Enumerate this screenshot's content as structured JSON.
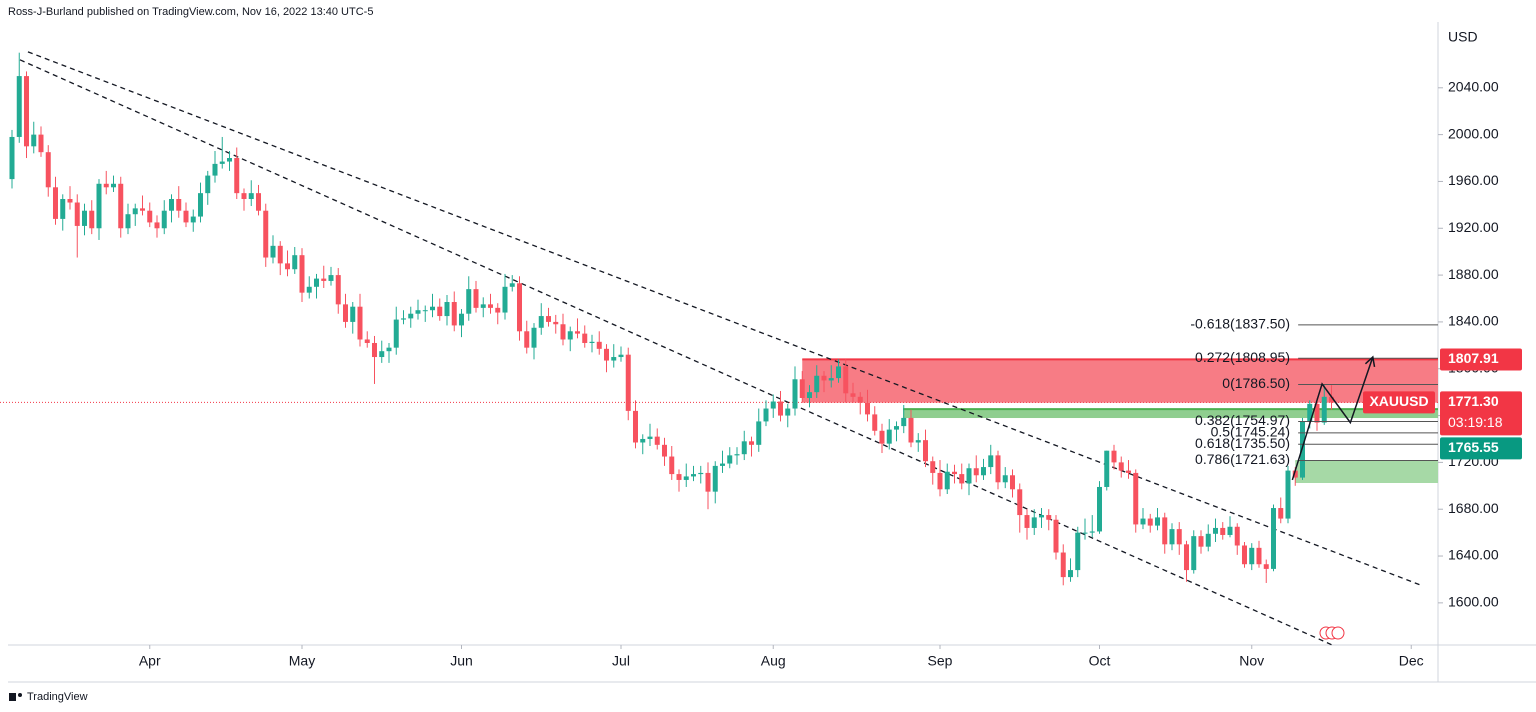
{
  "chart_data": {
    "type": "candlestick",
    "header": "Ross-J-Burland published on TradingView.com, Nov 16, 2022 13:40 UTC-5",
    "footer": "TradingView",
    "currency": "USD",
    "symbol": "XAUUSD",
    "up_color": "#22ab94",
    "down_color": "#f7525f",
    "xlim": [
      -1.655,
      196.69
    ],
    "xticks": [
      {
        "value": 19,
        "label": "Apr"
      },
      {
        "value": 40,
        "label": "May"
      },
      {
        "value": 62,
        "label": "Jun"
      },
      {
        "value": 84,
        "label": "Jul"
      },
      {
        "value": 105,
        "label": "Aug"
      },
      {
        "value": 128,
        "label": "Sep"
      },
      {
        "value": 150,
        "label": "Oct"
      },
      {
        "value": 171,
        "label": "Nov"
      },
      {
        "value": 193,
        "label": "Dec"
      }
    ],
    "ylim": [
      1564,
      2115
    ],
    "yticks": [
      {
        "value": 1600,
        "label": "1600.00"
      },
      {
        "value": 1640,
        "label": "1640.00"
      },
      {
        "value": 1680,
        "label": "1680.00"
      },
      {
        "value": 1720,
        "label": "1720.00"
      },
      {
        "value": 1760,
        "label": "1760.00"
      },
      {
        "value": 1800,
        "label": "1800.00"
      },
      {
        "value": 1840,
        "label": "1840.00"
      },
      {
        "value": 1880,
        "label": "1880.00"
      },
      {
        "value": 1920,
        "label": "1920.00"
      },
      {
        "value": 1960,
        "label": "1960.00"
      },
      {
        "value": 2000,
        "label": "2000.00"
      },
      {
        "value": 2040,
        "label": "2040.00"
      }
    ],
    "ohlc": [
      [
        1962,
        2004,
        1954,
        1998
      ],
      [
        1998,
        2070,
        1993,
        2050
      ],
      [
        2050,
        2054,
        1980,
        1990
      ],
      [
        1990,
        2011,
        1984,
        2000
      ],
      [
        2000,
        2007,
        1981,
        1985
      ],
      [
        1985,
        1991,
        1947,
        1955
      ],
      [
        1955,
        1964,
        1923,
        1928
      ],
      [
        1928,
        1949,
        1918,
        1945
      ],
      [
        1945,
        1956,
        1936,
        1942
      ],
      [
        1942,
        1949,
        1895,
        1922
      ],
      [
        1922,
        1941,
        1914,
        1935
      ],
      [
        1935,
        1944,
        1915,
        1920
      ],
      [
        1920,
        1962,
        1910,
        1958
      ],
      [
        1958,
        1969,
        1949,
        1955
      ],
      [
        1955,
        1965,
        1951,
        1958
      ],
      [
        1958,
        1964,
        1912,
        1920
      ],
      [
        1920,
        1941,
        1915,
        1932
      ],
      [
        1932,
        1941,
        1922,
        1937
      ],
      [
        1937,
        1948,
        1931,
        1935
      ],
      [
        1935,
        1942,
        1921,
        1925
      ],
      [
        1925,
        1931,
        1912,
        1920
      ],
      [
        1920,
        1944,
        1915,
        1935
      ],
      [
        1935,
        1949,
        1925,
        1945
      ],
      [
        1945,
        1956,
        1929,
        1935
      ],
      [
        1935,
        1942,
        1921,
        1925
      ],
      [
        1925,
        1936,
        1917,
        1930
      ],
      [
        1930,
        1959,
        1925,
        1950
      ],
      [
        1950,
        1969,
        1940,
        1965
      ],
      [
        1965,
        1986,
        1959,
        1975
      ],
      [
        1975,
        1998,
        1971,
        1977
      ],
      [
        1977,
        1986,
        1969,
        1980
      ],
      [
        1980,
        1989,
        1945,
        1950
      ],
      [
        1950,
        1954,
        1935,
        1945
      ],
      [
        1945,
        1961,
        1939,
        1950
      ],
      [
        1950,
        1957,
        1931,
        1935
      ],
      [
        1935,
        1941,
        1887,
        1895
      ],
      [
        1895,
        1914,
        1890,
        1905
      ],
      [
        1905,
        1909,
        1880,
        1890
      ],
      [
        1890,
        1901,
        1879,
        1885
      ],
      [
        1885,
        1904,
        1881,
        1897
      ],
      [
        1897,
        1903,
        1857,
        1865
      ],
      [
        1865,
        1879,
        1860,
        1870
      ],
      [
        1870,
        1881,
        1860,
        1877
      ],
      [
        1877,
        1888,
        1869,
        1875
      ],
      [
        1875,
        1887,
        1871,
        1880
      ],
      [
        1880,
        1886,
        1847,
        1855
      ],
      [
        1855,
        1864,
        1835,
        1840
      ],
      [
        1840,
        1857,
        1830,
        1853
      ],
      [
        1853,
        1864,
        1819,
        1825
      ],
      [
        1825,
        1832,
        1818,
        1822
      ],
      [
        1822,
        1828,
        1787,
        1810
      ],
      [
        1810,
        1824,
        1805,
        1815
      ],
      [
        1815,
        1822,
        1805,
        1818
      ],
      [
        1818,
        1853,
        1812,
        1842
      ],
      [
        1842,
        1850,
        1838,
        1843
      ],
      [
        1843,
        1853,
        1835,
        1847
      ],
      [
        1847,
        1859,
        1842,
        1850
      ],
      [
        1850,
        1854,
        1840,
        1850
      ],
      [
        1850,
        1864,
        1844,
        1853
      ],
      [
        1853,
        1860,
        1841,
        1845
      ],
      [
        1845,
        1863,
        1837,
        1857
      ],
      [
        1857,
        1866,
        1832,
        1837
      ],
      [
        1837,
        1851,
        1827,
        1847
      ],
      [
        1847,
        1879,
        1841,
        1868
      ],
      [
        1868,
        1875,
        1848,
        1852
      ],
      [
        1852,
        1861,
        1844,
        1855
      ],
      [
        1855,
        1864,
        1847,
        1852
      ],
      [
        1852,
        1856,
        1838,
        1848
      ],
      [
        1848,
        1881,
        1842,
        1870
      ],
      [
        1870,
        1880,
        1866,
        1873
      ],
      [
        1873,
        1879,
        1824,
        1832
      ],
      [
        1832,
        1841,
        1813,
        1818
      ],
      [
        1818,
        1839,
        1808,
        1835
      ],
      [
        1835,
        1856,
        1829,
        1845
      ],
      [
        1845,
        1852,
        1836,
        1840
      ],
      [
        1840,
        1846,
        1830,
        1838
      ],
      [
        1838,
        1847,
        1820,
        1825
      ],
      [
        1825,
        1836,
        1815,
        1832
      ],
      [
        1832,
        1843,
        1826,
        1830
      ],
      [
        1830,
        1837,
        1818,
        1822
      ],
      [
        1822,
        1829,
        1814,
        1823
      ],
      [
        1823,
        1832,
        1812,
        1817
      ],
      [
        1817,
        1821,
        1797,
        1807
      ],
      [
        1807,
        1821,
        1801,
        1810
      ],
      [
        1810,
        1819,
        1806,
        1812
      ],
      [
        1812,
        1818,
        1756,
        1764
      ],
      [
        1764,
        1773,
        1732,
        1737
      ],
      [
        1737,
        1744,
        1727,
        1740
      ],
      [
        1740,
        1753,
        1734,
        1742
      ],
      [
        1742,
        1749,
        1731,
        1735
      ],
      [
        1735,
        1741,
        1717,
        1725
      ],
      [
        1725,
        1734,
        1705,
        1710
      ],
      [
        1710,
        1714,
        1695,
        1705
      ],
      [
        1705,
        1719,
        1699,
        1708
      ],
      [
        1708,
        1717,
        1704,
        1710
      ],
      [
        1710,
        1717,
        1702,
        1711
      ],
      [
        1711,
        1720,
        1680,
        1695
      ],
      [
        1695,
        1721,
        1685,
        1717
      ],
      [
        1717,
        1730,
        1711,
        1719
      ],
      [
        1719,
        1733,
        1715,
        1726
      ],
      [
        1726,
        1733,
        1718,
        1727
      ],
      [
        1727,
        1747,
        1722,
        1738
      ],
      [
        1738,
        1742,
        1725,
        1735
      ],
      [
        1735,
        1766,
        1729,
        1755
      ],
      [
        1755,
        1773,
        1751,
        1766
      ],
      [
        1766,
        1778,
        1758,
        1772
      ],
      [
        1772,
        1781,
        1755,
        1760
      ],
      [
        1760,
        1770,
        1750,
        1766
      ],
      [
        1766,
        1802,
        1760,
        1791
      ],
      [
        1791,
        1798,
        1771,
        1775
      ],
      [
        1775,
        1786,
        1767,
        1780
      ],
      [
        1780,
        1803,
        1775,
        1794
      ],
      [
        1794,
        1798,
        1780,
        1790
      ],
      [
        1790,
        1803,
        1784,
        1792
      ],
      [
        1792,
        1808,
        1788,
        1802
      ],
      [
        1802,
        1808,
        1771,
        1779
      ],
      [
        1779,
        1788,
        1771,
        1776
      ],
      [
        1776,
        1780,
        1761,
        1771
      ],
      [
        1771,
        1782,
        1755,
        1761
      ],
      [
        1761,
        1768,
        1743,
        1747
      ],
      [
        1747,
        1753,
        1728,
        1736
      ],
      [
        1736,
        1757,
        1731,
        1748
      ],
      [
        1748,
        1755,
        1738,
        1751
      ],
      [
        1751,
        1769,
        1745,
        1758
      ],
      [
        1758,
        1765,
        1733,
        1737
      ],
      [
        1737,
        1745,
        1729,
        1739
      ],
      [
        1739,
        1748,
        1716,
        1721
      ],
      [
        1721,
        1725,
        1701,
        1711
      ],
      [
        1711,
        1722,
        1691,
        1697
      ],
      [
        1697,
        1719,
        1693,
        1712
      ],
      [
        1712,
        1718,
        1702,
        1710
      ],
      [
        1710,
        1719,
        1697,
        1702
      ],
      [
        1702,
        1719,
        1692,
        1715
      ],
      [
        1715,
        1726,
        1703,
        1709
      ],
      [
        1709,
        1723,
        1705,
        1716
      ],
      [
        1716,
        1735,
        1710,
        1726
      ],
      [
        1726,
        1730,
        1697,
        1703
      ],
      [
        1703,
        1716,
        1698,
        1709
      ],
      [
        1709,
        1714,
        1690,
        1697
      ],
      [
        1697,
        1702,
        1660,
        1675
      ],
      [
        1675,
        1680,
        1654,
        1664
      ],
      [
        1664,
        1680,
        1658,
        1673
      ],
      [
        1673,
        1681,
        1664,
        1675
      ],
      [
        1675,
        1680,
        1662,
        1671
      ],
      [
        1671,
        1675,
        1637,
        1643
      ],
      [
        1643,
        1650,
        1615,
        1622
      ],
      [
        1622,
        1638,
        1618,
        1628
      ],
      [
        1628,
        1665,
        1622,
        1660
      ],
      [
        1660,
        1672,
        1654,
        1660
      ],
      [
        1660,
        1675,
        1656,
        1661
      ],
      [
        1661,
        1704,
        1659,
        1699
      ],
      [
        1699,
        1730,
        1696,
        1730
      ],
      [
        1730,
        1735,
        1714,
        1720
      ],
      [
        1720,
        1725,
        1707,
        1713
      ],
      [
        1713,
        1722,
        1706,
        1711
      ],
      [
        1711,
        1714,
        1660,
        1667
      ],
      [
        1667,
        1681,
        1663,
        1672
      ],
      [
        1672,
        1676,
        1660,
        1666
      ],
      [
        1666,
        1681,
        1662,
        1673
      ],
      [
        1673,
        1677,
        1642,
        1650
      ],
      [
        1650,
        1668,
        1645,
        1663
      ],
      [
        1663,
        1669,
        1641,
        1650
      ],
      [
        1650,
        1653,
        1618,
        1628
      ],
      [
        1628,
        1662,
        1625,
        1657
      ],
      [
        1657,
        1662,
        1642,
        1648
      ],
      [
        1648,
        1667,
        1644,
        1659
      ],
      [
        1659,
        1672,
        1652,
        1664
      ],
      [
        1664,
        1669,
        1654,
        1658
      ],
      [
        1658,
        1674,
        1656,
        1665
      ],
      [
        1665,
        1668,
        1641,
        1649
      ],
      [
        1649,
        1652,
        1630,
        1633
      ],
      [
        1633,
        1651,
        1628,
        1647
      ],
      [
        1647,
        1653,
        1630,
        1633
      ],
      [
        1633,
        1637,
        1617,
        1629
      ],
      [
        1629,
        1684,
        1627,
        1681
      ],
      [
        1681,
        1690,
        1668,
        1672
      ],
      [
        1672,
        1717,
        1668,
        1713
      ],
      [
        1713,
        1716,
        1700,
        1707
      ],
      [
        1707,
        1758,
        1705,
        1755
      ],
      [
        1755,
        1773,
        1749,
        1770
      ],
      [
        1770,
        1775,
        1747,
        1754
      ],
      [
        1754,
        1786,
        1752,
        1776
      ],
      [
        1776,
        1786,
        1765,
        1771.3
      ]
    ],
    "trendlines": [
      {
        "x": [
          2.2,
          194.2
        ],
        "y": [
          2070.7,
          1615.4
        ]
      },
      {
        "x": [
          1.1,
          182.1
        ],
        "y": [
          2063.9,
          1564
        ]
      }
    ],
    "zones": [
      {
        "x": [
          109,
          196.69
        ],
        "top": 1808,
        "bottom": 1771,
        "color": "#f77c85",
        "edge": "#f23645"
      },
      {
        "x": [
          122.9,
          196.69
        ],
        "top": 1765.5,
        "bottom": 1757.9,
        "color": "#8fce8f",
        "edge": "#4caf50"
      },
      {
        "x": [
          177,
          196.69
        ],
        "top": 1721.2,
        "bottom": 1702.4,
        "color": "#a6d9a6",
        "edge": "#a6d9a6"
      }
    ],
    "fib_x": [
      177.4,
      196.69
    ],
    "fib_levels": [
      {
        "value": 1837.5,
        "label": "-0.618(1837.50)"
      },
      {
        "value": 1808.95,
        "label": "0.272(1808.95)"
      },
      {
        "value": 1786.5,
        "label": "0(1786.50)"
      },
      {
        "value": 1754.97,
        "label": "0.382(1754.97)"
      },
      {
        "value": 1745.24,
        "label": "0.5(1745.24)"
      },
      {
        "value": 1735.5,
        "label": "0.618(1735.50)"
      },
      {
        "value": 1721.63,
        "label": "0.786(1721.63)"
      }
    ],
    "projection": {
      "x": [
        176.6,
        180.7,
        184.6,
        187.7
      ],
      "y": [
        1705,
        1787,
        1754,
        1810
      ]
    },
    "last_price": {
      "value": 1771.3,
      "label": "1771.30",
      "countdown": "03:19:18",
      "color": "#f23645"
    },
    "price_tags": [
      {
        "value": 1807.91,
        "label": "1807.91",
        "color": "#f23645"
      },
      {
        "value": 1765.55,
        "label": "1765.55",
        "color": "#089981"
      }
    ]
  }
}
